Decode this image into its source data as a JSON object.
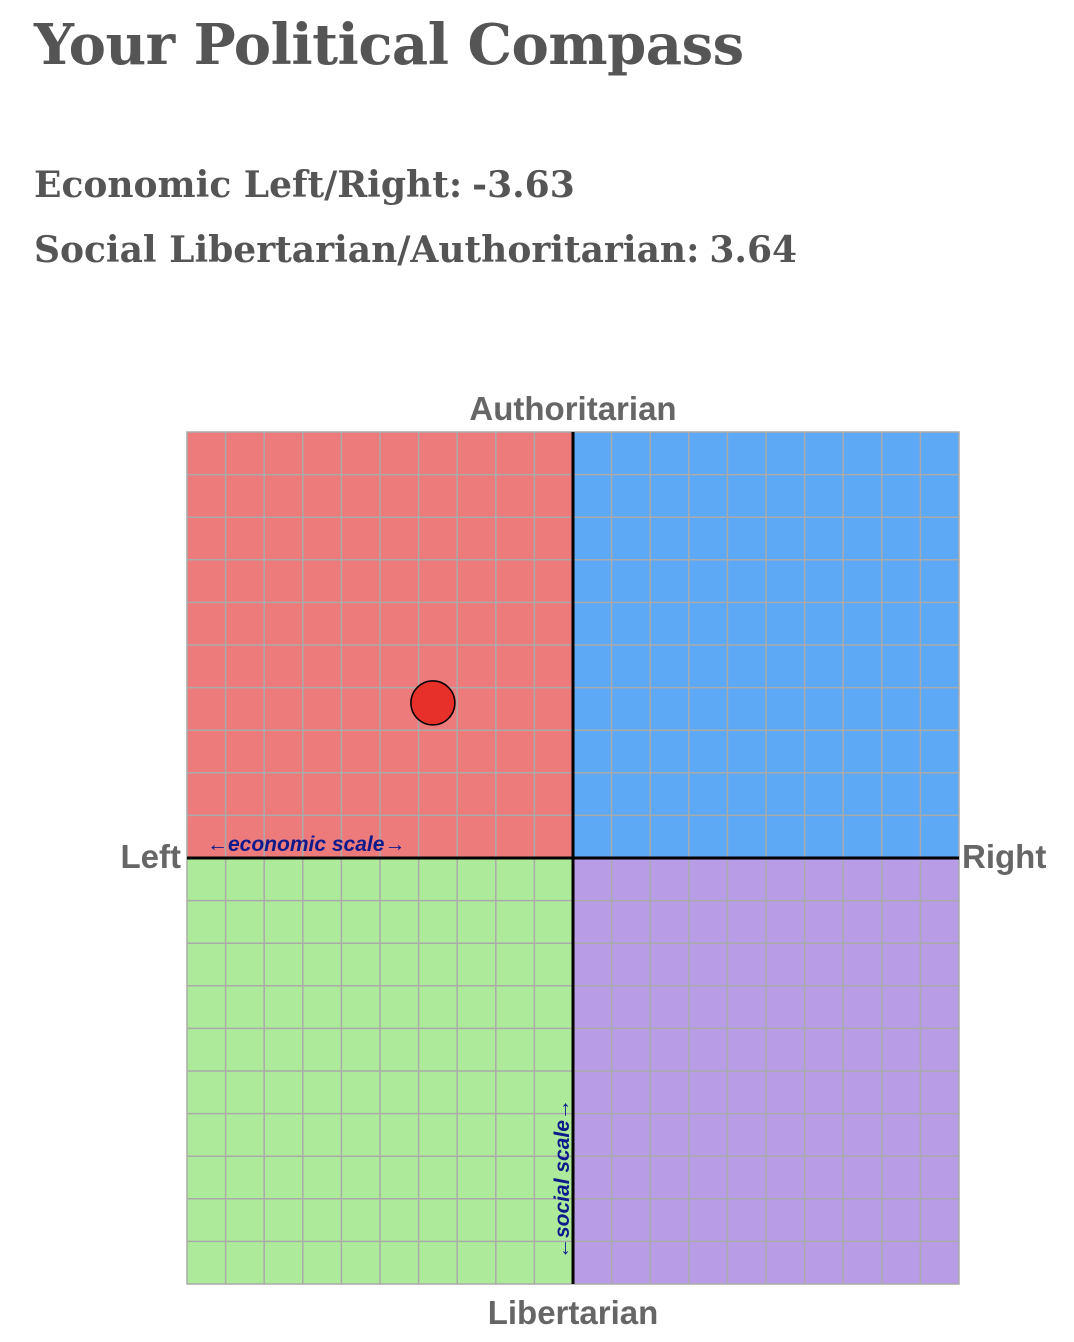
{
  "page": {
    "title": "Your Political Compass",
    "economic_label": "Economic Left/Right:",
    "economic_value": "-3.63",
    "social_label": "Social Libertarian/Authoritarian:",
    "social_value": "3.64"
  },
  "chart_data": {
    "type": "scatter",
    "axes": {
      "x": {
        "label_left": "Left",
        "label_right": "Right",
        "range": [
          -10,
          10
        ]
      },
      "y": {
        "label_top": "Authoritarian",
        "label_bottom": "Libertarian",
        "range": [
          -10,
          10
        ]
      }
    },
    "grid": true,
    "grid_step": 1,
    "scale_notes": {
      "economic": "←economic scale→",
      "social": "←social scale→"
    },
    "quadrants": {
      "authoritarian_left": "#ee7b7b",
      "authoritarian_right": "#5da9f5",
      "libertarian_left": "#adeb9a",
      "libertarian_right": "#b89ce6"
    },
    "points": [
      {
        "x": -3.63,
        "y": 3.64,
        "color": "#e8302a"
      }
    ]
  }
}
